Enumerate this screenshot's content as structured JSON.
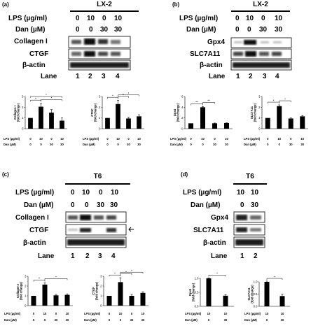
{
  "panels": {
    "a": {
      "label": "(a)",
      "cell_line": "LX-2",
      "rows": [
        {
          "name": "LPS (µg/ml)",
          "values": [
            "0",
            "10",
            "0",
            "10"
          ]
        },
        {
          "name": "Dan (µM)",
          "values": [
            "0",
            "0",
            "30",
            "30"
          ]
        }
      ],
      "blots": [
        "Collagen I",
        "CTGF",
        "β-actin"
      ],
      "lane_label": "Lane",
      "lanes": [
        "1",
        "2",
        "3",
        "4"
      ]
    },
    "b": {
      "label": "(b)",
      "cell_line": "LX-2",
      "rows": [
        {
          "name": "LPS (µg/ml)",
          "values": [
            "0",
            "10",
            "0",
            "10"
          ]
        },
        {
          "name": "Dan (µM)",
          "values": [
            "0",
            "0",
            "30",
            "30"
          ]
        }
      ],
      "blots": [
        "Gpx4",
        "SLC7A11",
        "β-actin"
      ],
      "lane_label": "Lane",
      "lanes": [
        "1",
        "2",
        "3",
        "4"
      ]
    },
    "c": {
      "label": "(c)",
      "cell_line": "T6",
      "rows": [
        {
          "name": "LPS (µg/ml)",
          "values": [
            "0",
            "10",
            "0",
            "10"
          ]
        },
        {
          "name": "Dan (µM)",
          "values": [
            "0",
            "0",
            "30",
            "30"
          ]
        }
      ],
      "blots": [
        "Collagen I",
        "CTGF",
        "β-actin"
      ],
      "lane_label": "Lane",
      "lanes": [
        "1",
        "2",
        "3",
        "4"
      ]
    },
    "d": {
      "label": "(d)",
      "cell_line": "T6",
      "rows": [
        {
          "name": "LPS (µg/ml)",
          "values": [
            "10",
            "10"
          ]
        },
        {
          "name": "Dan (µM)",
          "values": [
            "0",
            "30"
          ]
        }
      ],
      "blots": [
        "Gpx4",
        "SLC7A11",
        "β-actin"
      ],
      "lane_label": "Lane",
      "lanes": [
        "1",
        "2"
      ]
    }
  },
  "chart_data": [
    {
      "type": "bar",
      "ylabel": "Collagen I (fold change)",
      "yticks": [
        "0",
        "1",
        "2",
        "3"
      ],
      "ylim": [
        0,
        3
      ],
      "values": [
        1.0,
        2.05,
        1.5,
        0.75
      ],
      "errors": [
        0,
        0.3,
        0.28,
        0.25
      ],
      "lps": [
        "0",
        "10",
        "0",
        "10"
      ],
      "dan": [
        "0",
        "0",
        "30",
        "30"
      ],
      "stars": [
        "*",
        "*",
        "*"
      ]
    },
    {
      "type": "bar",
      "ylabel": "CTGF (fold change)",
      "yticks": [
        "0",
        "1",
        "2",
        "3"
      ],
      "ylim": [
        0,
        3
      ],
      "values": [
        1.0,
        2.3,
        0.95,
        1.15
      ],
      "errors": [
        0,
        0.35,
        0.1,
        0.15
      ],
      "lps": [
        "0",
        "10",
        "0",
        "10"
      ],
      "dan": [
        "0",
        "0",
        "30",
        "30"
      ],
      "stars": [
        "*",
        "*",
        "*"
      ]
    },
    {
      "type": "bar",
      "ylabel": "Gpx4 (fold change)",
      "yticks": [
        "0",
        "2",
        "4",
        "6"
      ],
      "ylim": [
        0,
        6
      ],
      "values": [
        1.0,
        4.0,
        1.0,
        1.05
      ],
      "errors": [
        0,
        0.12,
        0.05,
        0.05
      ],
      "lps": [
        "0",
        "10",
        "0",
        "10"
      ],
      "dan": [
        "0",
        "0",
        "30",
        "30"
      ],
      "stars": [
        "**",
        "**"
      ]
    },
    {
      "type": "bar",
      "ylabel": "SLC7A11 (fold change)",
      "yticks": [
        "0",
        "1",
        "2",
        "3"
      ],
      "ylim": [
        0,
        3
      ],
      "values": [
        1.0,
        2.1,
        0.95,
        1.15
      ],
      "errors": [
        0,
        0.12,
        0.05,
        0.08
      ],
      "lps": [
        "0",
        "10",
        "0",
        "10"
      ],
      "dan": [
        "0",
        "0",
        "30",
        "30"
      ],
      "stars": [
        "*",
        "*"
      ]
    },
    {
      "type": "bar",
      "ylabel": "Collagen I (fold change)",
      "yticks": [
        "0",
        "1",
        "2",
        "3"
      ],
      "ylim": [
        0,
        3
      ],
      "values": [
        1.0,
        2.15,
        1.05,
        1.1
      ],
      "errors": [
        0,
        0.18,
        0.1,
        0.1
      ],
      "lps": [
        "0",
        "10",
        "0",
        "10"
      ],
      "dan": [
        "0",
        "0",
        "30",
        "30"
      ],
      "stars": [
        "*",
        "*"
      ]
    },
    {
      "type": "bar",
      "ylabel": "CTGF (fold change)",
      "yticks": [
        "0",
        "1",
        "2",
        "3"
      ],
      "ylim": [
        0,
        3
      ],
      "values": [
        1.0,
        2.4,
        1.0,
        1.3
      ],
      "errors": [
        0,
        0.45,
        0.15,
        0.12
      ],
      "lps": [
        "0",
        "10",
        "0",
        "10"
      ],
      "dan": [
        "0",
        "0",
        "30",
        "30"
      ],
      "stars": [
        "*",
        "*",
        "*"
      ]
    },
    {
      "type": "bar",
      "ylabel": "Gpx4 (fold change)",
      "yticks": [
        "0.0",
        "0.5",
        "1.0"
      ],
      "ylim": [
        0,
        1.0
      ],
      "values": [
        1.0,
        0.38
      ],
      "errors": [
        0.02,
        0.04
      ],
      "lps": [
        "10",
        "10"
      ],
      "dan": [
        "0",
        "30"
      ],
      "stars": [
        "*"
      ]
    },
    {
      "type": "bar",
      "ylabel": "SLC7A11 (fold change)",
      "yticks": [
        "0.0",
        "0.5",
        "1.0"
      ],
      "ylim": [
        0,
        1.0
      ],
      "values": [
        1.0,
        0.42
      ],
      "errors": [
        0.03,
        0.08
      ],
      "lps": [
        "10",
        "10"
      ],
      "dan": [
        "0",
        "30"
      ],
      "stars": [
        "*"
      ]
    }
  ],
  "chart_axis_labels": {
    "lps": "LPS (µg/ml)",
    "dan": "Dan (µM)"
  }
}
